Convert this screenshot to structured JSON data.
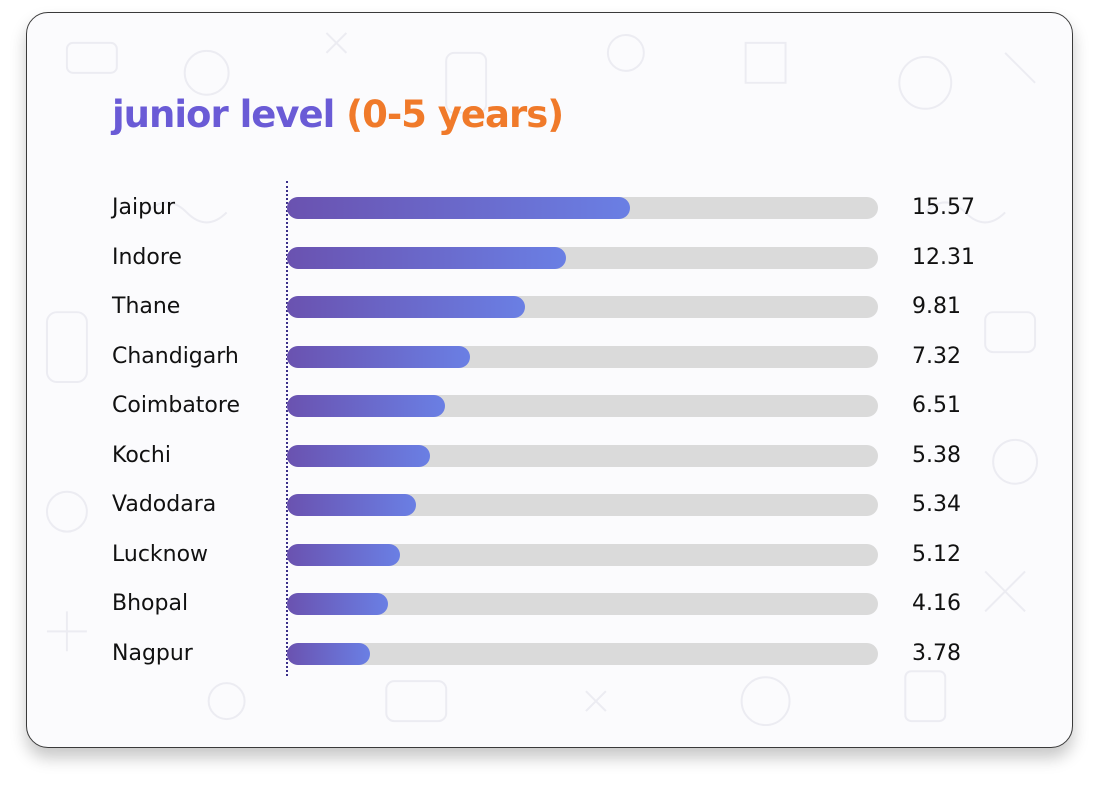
{
  "title": {
    "main": "junior level",
    "sub": "(0-5 years)"
  },
  "colors": {
    "title_main": "#6a5bd6",
    "title_sub": "#f07a2a",
    "bar_start": "#6a52b0",
    "bar_end": "#6a7fe4",
    "track": "#dadada"
  },
  "chart_data": {
    "type": "bar",
    "orientation": "horizontal",
    "title": "junior level (0-5 years)",
    "categories": [
      "Jaipur",
      "Indore",
      "Thane",
      "Chandigarh",
      "Coimbatore",
      "Kochi",
      "Vadodara",
      "Lucknow",
      "Bhopal",
      "Nagpur"
    ],
    "values": [
      15.57,
      12.31,
      9.81,
      7.32,
      6.51,
      5.38,
      5.34,
      5.12,
      4.16,
      3.78
    ],
    "value_labels": [
      "15.57",
      "12.31",
      "9.81",
      "7.32",
      "6.51",
      "5.38",
      "5.34",
      "5.12",
      "4.16",
      "3.78"
    ],
    "bar_fill_fraction": [
      0.58,
      0.472,
      0.402,
      0.31,
      0.268,
      0.242,
      0.219,
      0.191,
      0.171,
      0.14
    ],
    "xlim": [
      0,
      27
    ],
    "grid": false,
    "legend": "none"
  }
}
